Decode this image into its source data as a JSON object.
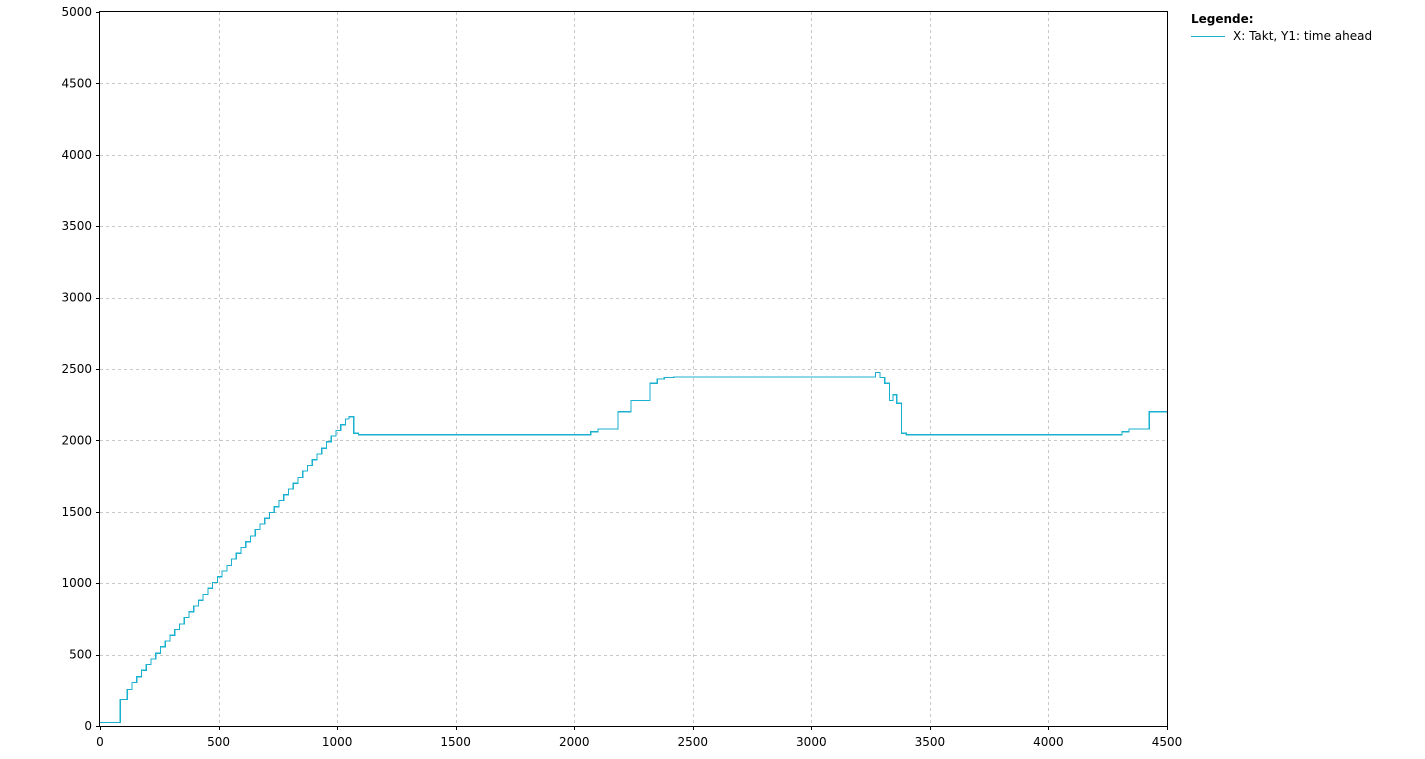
{
  "legend": {
    "title": "Legende:",
    "entry": "X: Takt, Y1: time ahead"
  },
  "colors": {
    "series": "#1ab0cf",
    "grid": "#c8c8c8",
    "axis": "#000000"
  },
  "chart_data": {
    "type": "line",
    "title": "",
    "xlabel": "",
    "ylabel": "",
    "xlim": [
      0,
      4500
    ],
    "ylim": [
      0,
      5000
    ],
    "xticks": [
      0,
      500,
      1000,
      1500,
      2000,
      2500,
      3000,
      3500,
      4000,
      4500
    ],
    "yticks": [
      0,
      500,
      1000,
      1500,
      2000,
      2500,
      3000,
      3500,
      4000,
      4500,
      5000
    ],
    "grid": true,
    "legend_position": "top-right outside",
    "step": true,
    "series": [
      {
        "name": "X: Takt, Y1: time ahead",
        "points": [
          [
            0,
            25
          ],
          [
            85,
            25
          ],
          [
            85,
            185
          ],
          [
            115,
            185
          ],
          [
            115,
            255
          ],
          [
            135,
            255
          ],
          [
            135,
            305
          ],
          [
            155,
            305
          ],
          [
            155,
            345
          ],
          [
            175,
            345
          ],
          [
            175,
            390
          ],
          [
            195,
            390
          ],
          [
            195,
            430
          ],
          [
            215,
            430
          ],
          [
            215,
            470
          ],
          [
            235,
            470
          ],
          [
            235,
            510
          ],
          [
            255,
            510
          ],
          [
            255,
            555
          ],
          [
            275,
            555
          ],
          [
            275,
            595
          ],
          [
            295,
            595
          ],
          [
            295,
            635
          ],
          [
            315,
            635
          ],
          [
            315,
            675
          ],
          [
            335,
            675
          ],
          [
            335,
            715
          ],
          [
            355,
            715
          ],
          [
            355,
            760
          ],
          [
            375,
            760
          ],
          [
            375,
            800
          ],
          [
            395,
            800
          ],
          [
            395,
            840
          ],
          [
            415,
            840
          ],
          [
            415,
            880
          ],
          [
            435,
            880
          ],
          [
            435,
            920
          ],
          [
            455,
            920
          ],
          [
            455,
            965
          ],
          [
            475,
            965
          ],
          [
            475,
            1005
          ],
          [
            495,
            1005
          ],
          [
            495,
            1045
          ],
          [
            515,
            1045
          ],
          [
            515,
            1085
          ],
          [
            535,
            1085
          ],
          [
            535,
            1125
          ],
          [
            555,
            1125
          ],
          [
            555,
            1170
          ],
          [
            575,
            1170
          ],
          [
            575,
            1210
          ],
          [
            595,
            1210
          ],
          [
            595,
            1250
          ],
          [
            615,
            1250
          ],
          [
            615,
            1290
          ],
          [
            635,
            1290
          ],
          [
            635,
            1330
          ],
          [
            655,
            1330
          ],
          [
            655,
            1375
          ],
          [
            675,
            1375
          ],
          [
            675,
            1415
          ],
          [
            695,
            1415
          ],
          [
            695,
            1455
          ],
          [
            715,
            1455
          ],
          [
            715,
            1495
          ],
          [
            735,
            1495
          ],
          [
            735,
            1535
          ],
          [
            755,
            1535
          ],
          [
            755,
            1580
          ],
          [
            775,
            1580
          ],
          [
            775,
            1620
          ],
          [
            795,
            1620
          ],
          [
            795,
            1660
          ],
          [
            815,
            1660
          ],
          [
            815,
            1700
          ],
          [
            835,
            1700
          ],
          [
            835,
            1740
          ],
          [
            855,
            1740
          ],
          [
            855,
            1785
          ],
          [
            875,
            1785
          ],
          [
            875,
            1825
          ],
          [
            895,
            1825
          ],
          [
            895,
            1865
          ],
          [
            915,
            1865
          ],
          [
            915,
            1905
          ],
          [
            935,
            1905
          ],
          [
            935,
            1945
          ],
          [
            955,
            1945
          ],
          [
            955,
            1990
          ],
          [
            975,
            1990
          ],
          [
            975,
            2030
          ],
          [
            995,
            2030
          ],
          [
            995,
            2070
          ],
          [
            1015,
            2070
          ],
          [
            1015,
            2110
          ],
          [
            1035,
            2110
          ],
          [
            1035,
            2150
          ],
          [
            1050,
            2150
          ],
          [
            1050,
            2165
          ],
          [
            1070,
            2165
          ],
          [
            1070,
            2050
          ],
          [
            1090,
            2050
          ],
          [
            1090,
            2040
          ],
          [
            2070,
            2040
          ],
          [
            2070,
            2060
          ],
          [
            2100,
            2060
          ],
          [
            2100,
            2080
          ],
          [
            2185,
            2080
          ],
          [
            2185,
            2200
          ],
          [
            2240,
            2200
          ],
          [
            2240,
            2280
          ],
          [
            2320,
            2280
          ],
          [
            2320,
            2400
          ],
          [
            2350,
            2400
          ],
          [
            2350,
            2430
          ],
          [
            2380,
            2430
          ],
          [
            2380,
            2440
          ],
          [
            2420,
            2440
          ],
          [
            2420,
            2445
          ],
          [
            3270,
            2445
          ],
          [
            3270,
            2475
          ],
          [
            3290,
            2475
          ],
          [
            3290,
            2440
          ],
          [
            3310,
            2440
          ],
          [
            3310,
            2400
          ],
          [
            3330,
            2400
          ],
          [
            3330,
            2280
          ],
          [
            3345,
            2280
          ],
          [
            3345,
            2320
          ],
          [
            3360,
            2320
          ],
          [
            3360,
            2260
          ],
          [
            3380,
            2260
          ],
          [
            3380,
            2050
          ],
          [
            3400,
            2050
          ],
          [
            3400,
            2040
          ],
          [
            4310,
            2040
          ],
          [
            4310,
            2060
          ],
          [
            4340,
            2060
          ],
          [
            4340,
            2080
          ],
          [
            4425,
            2080
          ],
          [
            4425,
            2200
          ],
          [
            4500,
            2200
          ]
        ]
      }
    ]
  }
}
